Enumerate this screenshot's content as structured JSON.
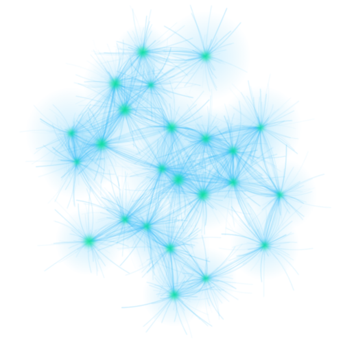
{
  "scene": {
    "background": "#ffffff",
    "palette": {
      "edge": "#29b6f6",
      "edge_light": "#81d4fa",
      "hub": "#00e676",
      "hub_glow": "#00c853"
    }
  }
}
